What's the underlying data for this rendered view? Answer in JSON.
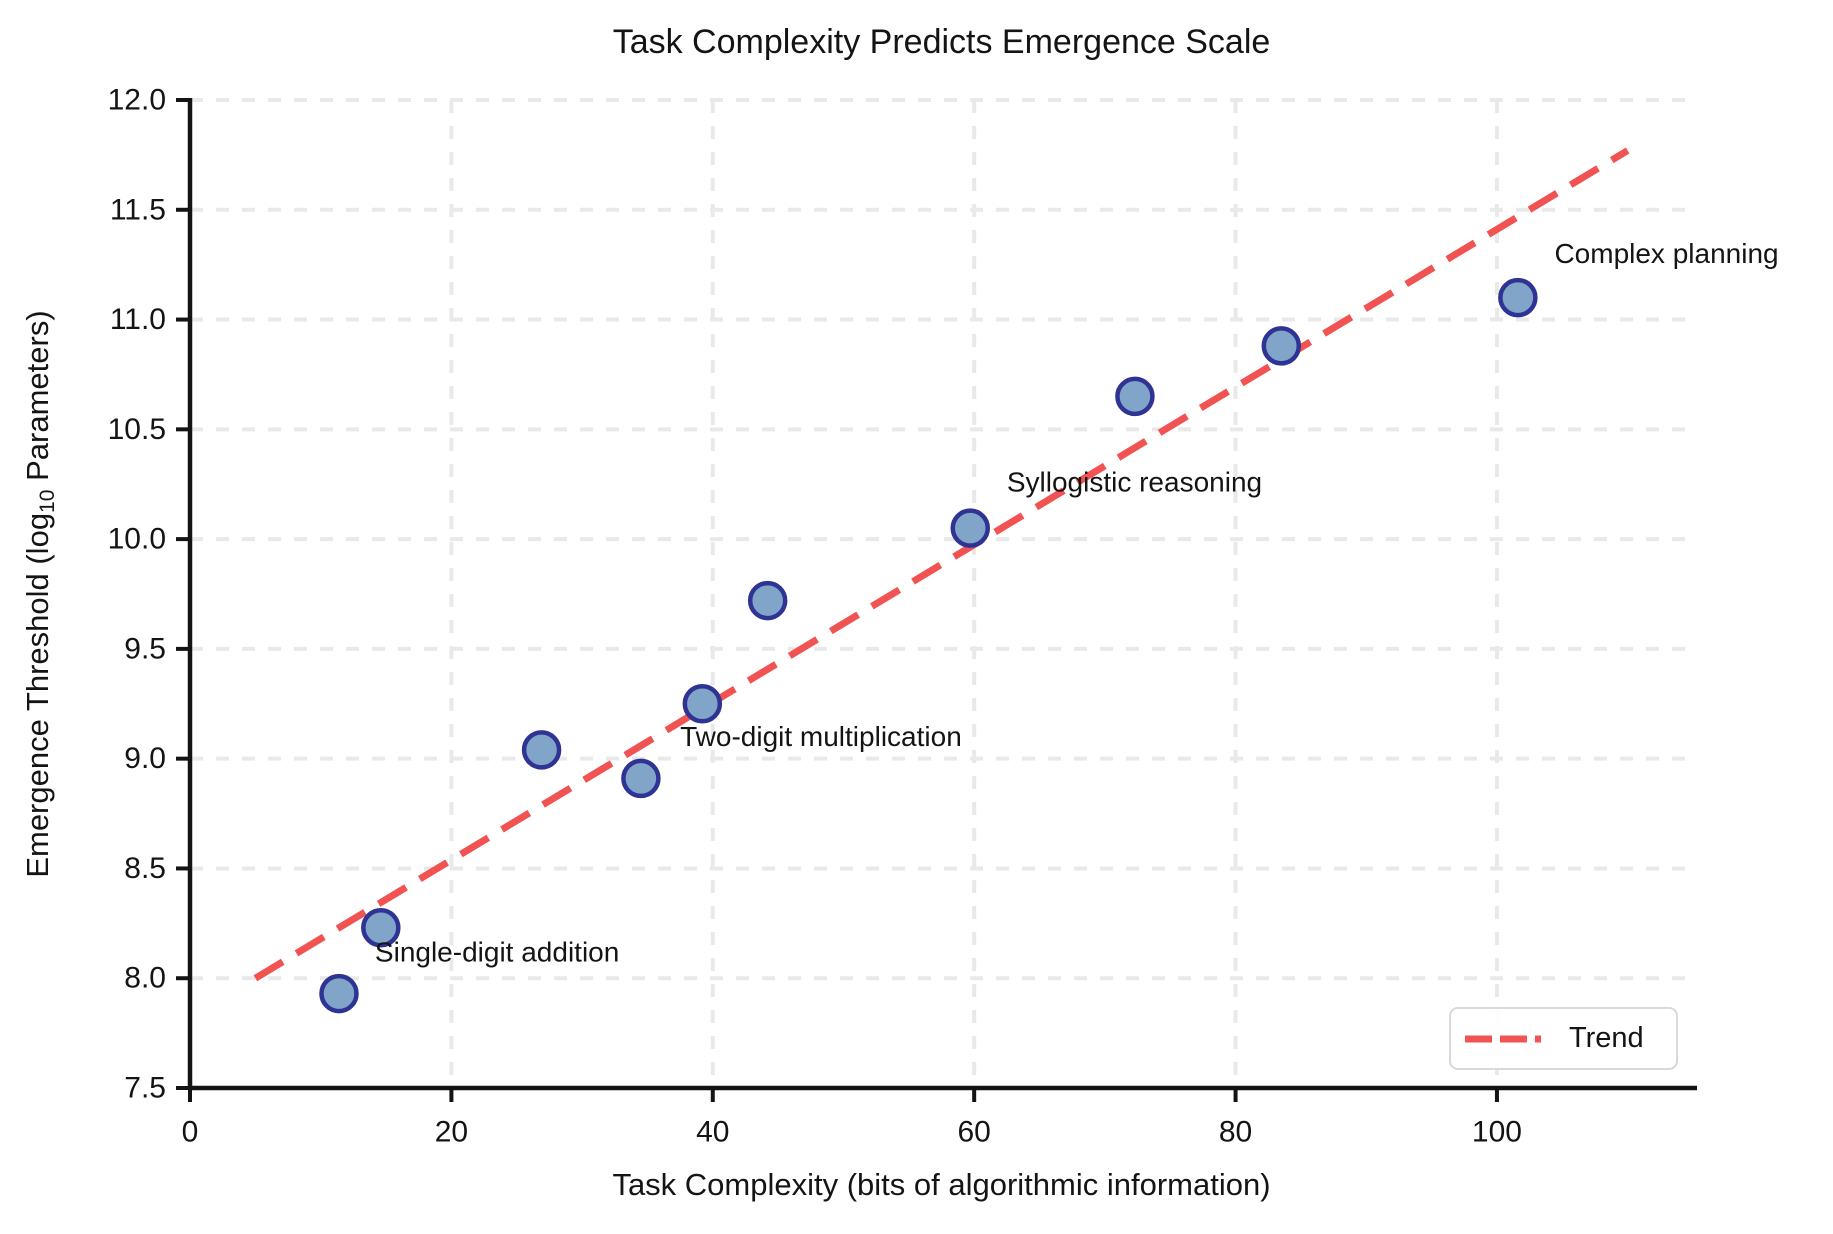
{
  "chart_data": {
    "type": "scatter",
    "title": "Task Complexity Predicts Emergence Scale",
    "xlabel": "Task Complexity (bits of algorithmic information)",
    "ylabel": {
      "prefix": "Emergence Threshold (log",
      "sub": "10",
      "suffix": " Parameters)"
    },
    "xlim": [
      0,
      115
    ],
    "ylim": [
      7.5,
      12.0
    ],
    "grid": true,
    "xticks": [
      {
        "v": 0,
        "label": "0"
      },
      {
        "v": 20,
        "label": "20"
      },
      {
        "v": 40,
        "label": "40"
      },
      {
        "v": 60,
        "label": "60"
      },
      {
        "v": 80,
        "label": "80"
      },
      {
        "v": 100,
        "label": "100"
      }
    ],
    "yticks": [
      {
        "v": 7.5,
        "label": "7.5"
      },
      {
        "v": 8.0,
        "label": "8.0"
      },
      {
        "v": 8.5,
        "label": "8.5"
      },
      {
        "v": 9.0,
        "label": "9.0"
      },
      {
        "v": 9.5,
        "label": "9.5"
      },
      {
        "v": 10.0,
        "label": "10.0"
      },
      {
        "v": 10.5,
        "label": "10.5"
      },
      {
        "v": 11.0,
        "label": "11.0"
      },
      {
        "v": 11.5,
        "label": "11.5"
      },
      {
        "v": 12.0,
        "label": "12.0"
      }
    ],
    "points": [
      {
        "x": 11.4,
        "y": 7.93
      },
      {
        "x": 14.6,
        "y": 8.23
      },
      {
        "x": 26.9,
        "y": 9.04
      },
      {
        "x": 34.5,
        "y": 8.91
      },
      {
        "x": 39.2,
        "y": 9.25
      },
      {
        "x": 44.2,
        "y": 9.72
      },
      {
        "x": 59.7,
        "y": 10.05
      },
      {
        "x": 72.3,
        "y": 10.65
      },
      {
        "x": 83.5,
        "y": 10.88
      },
      {
        "x": 101.6,
        "y": 11.1
      }
    ],
    "annotations": [
      {
        "label": "Single-digit addition",
        "x": 14.15,
        "y": 8.12
      },
      {
        "label": "Two-digit multiplication",
        "x": 37.5,
        "y": 9.1
      },
      {
        "label": "Syllogistic reasoning",
        "x": 62.5,
        "y": 10.26
      },
      {
        "label": "Complex planning",
        "x": 104.4,
        "y": 11.3
      }
    ],
    "trend": {
      "x": [
        5,
        110
      ],
      "y": [
        8.0,
        11.77
      ]
    },
    "legend": {
      "label": "Trend",
      "position": "lower-right"
    },
    "colors": {
      "marker_fill": "#80a5c8",
      "marker_edge": "#2f3494",
      "trend": "#f15353",
      "grid": "#e9e9e9",
      "axis": "#141414",
      "text": "#141414"
    }
  }
}
